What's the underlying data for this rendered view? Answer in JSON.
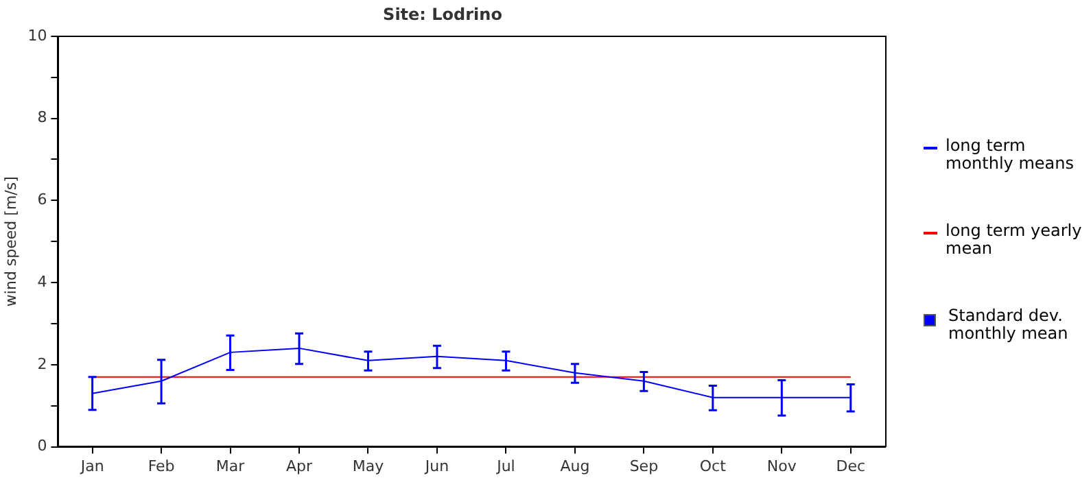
{
  "chart_data": {
    "type": "line",
    "title": "Site: Lodrino",
    "ylabel": "wind speed [m/s]",
    "categories": [
      "Jan",
      "Feb",
      "Mar",
      "Apr",
      "May",
      "Jun",
      "Jul",
      "Aug",
      "Sep",
      "Oct",
      "Nov",
      "Dec"
    ],
    "series": [
      {
        "name": "long term monthly means",
        "color": "#0000ff",
        "values": [
          1.3,
          1.6,
          2.3,
          2.4,
          2.1,
          2.2,
          2.1,
          1.8,
          1.6,
          1.2,
          1.2,
          1.2
        ],
        "errors": [
          [
            0.9,
            1.7
          ],
          [
            1.06,
            2.12
          ],
          [
            1.87,
            2.71
          ],
          [
            2.02,
            2.76
          ],
          [
            1.86,
            2.32
          ],
          [
            1.92,
            2.46
          ],
          [
            1.86,
            2.32
          ],
          [
            1.56,
            2.02
          ],
          [
            1.36,
            1.82
          ],
          [
            0.89,
            1.49
          ],
          [
            0.76,
            1.62
          ],
          [
            0.86,
            1.52
          ]
        ]
      },
      {
        "name": "long term yearly mean",
        "color": "#ff0000",
        "values": [
          1.7,
          1.7,
          1.7,
          1.7,
          1.7,
          1.7,
          1.7,
          1.7,
          1.7,
          1.7,
          1.7,
          1.7
        ]
      }
    ],
    "annotations": [
      "Standard dev. monthly mean"
    ],
    "ylim": [
      0,
      10
    ],
    "yticks": [
      0,
      {
        "value": 1,
        "label": null
      },
      2,
      {
        "value": 3,
        "label": null
      },
      4,
      {
        "value": 5,
        "label": null
      },
      6,
      {
        "value": 7,
        "label": null
      },
      8,
      {
        "value": 9,
        "label": null
      },
      10
    ],
    "grid": false,
    "legend": "right",
    "marker": "none",
    "line_style": "solid"
  }
}
